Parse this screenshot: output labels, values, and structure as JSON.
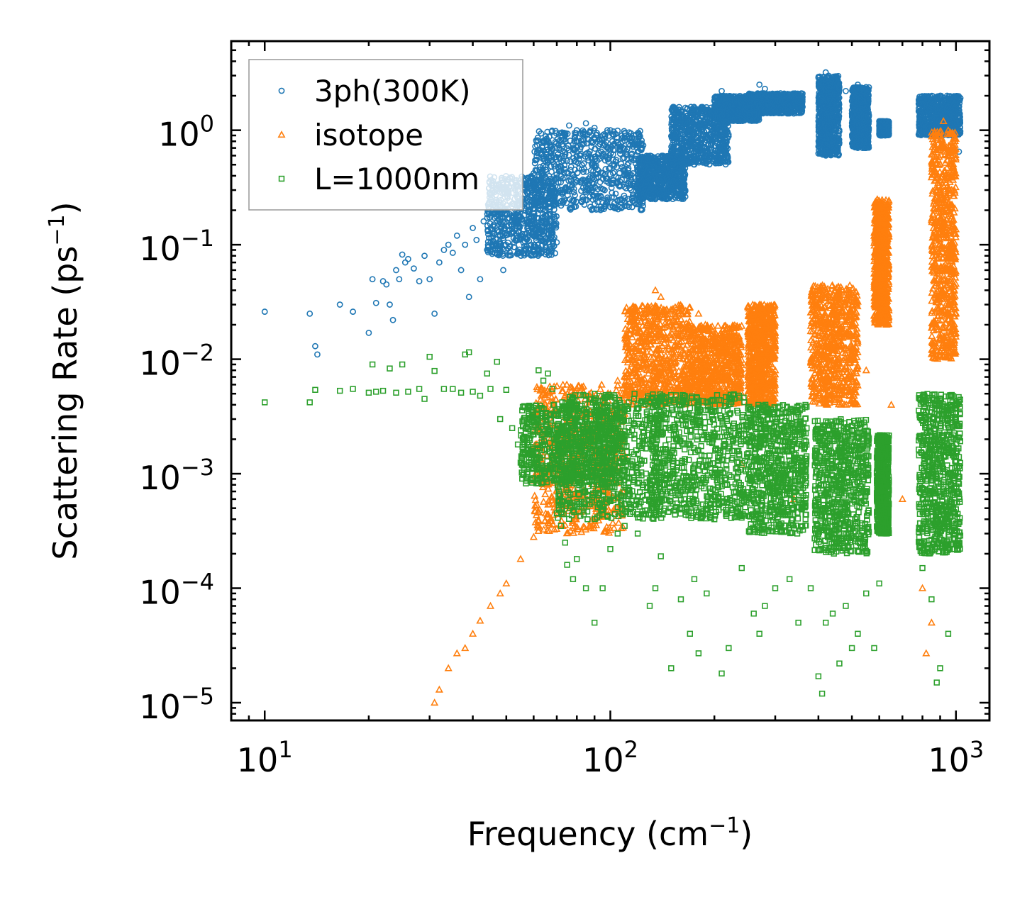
{
  "chart_data": {
    "type": "scatter",
    "title": "",
    "xlabel": "Frequency (cm",
    "xlabel_sup": "−1",
    "xlabel_end": ")",
    "ylabel": "Scattering Rate (ps",
    "ylabel_sup": "−1",
    "ylabel_end": ")",
    "x_scale": "log",
    "y_scale": "log",
    "xlim": [
      8,
      1250
    ],
    "ylim": [
      7e-06,
      6
    ],
    "legend_position": "top-left",
    "x_ticks": [
      {
        "value": 10,
        "base": "10",
        "exp": "1"
      },
      {
        "value": 100,
        "base": "10",
        "exp": "2"
      },
      {
        "value": 1000,
        "base": "10",
        "exp": "3"
      }
    ],
    "y_ticks": [
      {
        "value": 1,
        "base": "10",
        "exp": "0"
      },
      {
        "value": 0.1,
        "base": "10",
        "exp": "−1"
      },
      {
        "value": 0.01,
        "base": "10",
        "exp": "−2"
      },
      {
        "value": 0.001,
        "base": "10",
        "exp": "−3"
      },
      {
        "value": 0.0001,
        "base": "10",
        "exp": "−4"
      },
      {
        "value": 1e-05,
        "base": "10",
        "exp": "−5"
      }
    ],
    "series": [
      {
        "name": "3ph(300K)",
        "marker": "circle",
        "color": "#1f77b4",
        "points": [
          [
            10,
            0.026
          ],
          [
            13.5,
            0.025
          ],
          [
            14,
            0.013
          ],
          [
            14.2,
            0.011
          ],
          [
            16.5,
            0.03
          ],
          [
            18,
            0.026
          ],
          [
            20,
            0.017
          ],
          [
            20.5,
            0.05
          ],
          [
            21,
            0.031
          ],
          [
            22,
            0.048
          ],
          [
            22.5,
            0.045
          ],
          [
            23,
            0.03
          ],
          [
            23.5,
            0.022
          ],
          [
            24,
            0.06
          ],
          [
            24.5,
            0.05
          ],
          [
            25,
            0.082
          ],
          [
            25.5,
            0.07
          ],
          [
            26,
            0.075
          ],
          [
            27,
            0.062
          ],
          [
            28,
            0.048
          ],
          [
            29,
            0.08
          ],
          [
            30,
            0.05
          ],
          [
            31,
            0.025
          ],
          [
            32,
            0.07
          ],
          [
            33,
            0.09
          ],
          [
            34,
            0.1
          ],
          [
            35,
            0.085
          ],
          [
            36,
            0.12
          ],
          [
            37,
            0.06
          ],
          [
            38,
            0.1
          ],
          [
            39,
            0.035
          ],
          [
            40,
            0.14
          ],
          [
            41,
            0.11
          ],
          [
            42,
            0.05
          ],
          [
            43,
            0.16
          ],
          [
            44,
            0.09
          ],
          [
            45,
            0.18
          ],
          [
            46,
            0.15
          ],
          [
            47,
            0.21
          ],
          [
            48,
            0.12
          ],
          [
            49,
            0.06
          ],
          [
            50,
            0.22
          ],
          [
            52,
            0.18
          ],
          [
            54,
            0.3
          ],
          [
            56,
            0.25
          ],
          [
            58,
            0.14
          ],
          [
            60,
            0.33
          ],
          [
            62,
            0.22
          ],
          [
            64,
            0.42
          ],
          [
            66,
            0.35
          ],
          [
            68,
            0.55
          ],
          [
            70,
            0.7
          ],
          [
            72,
            0.48
          ],
          [
            74,
            0.9
          ],
          [
            76,
            1.1
          ],
          [
            78,
            0.75
          ],
          [
            80,
            1.0
          ],
          [
            82,
            0.6
          ],
          [
            85,
            1.15
          ],
          [
            88,
            0.8
          ],
          [
            90,
            1.05
          ],
          [
            92,
            0.45
          ],
          [
            95,
            0.9
          ],
          [
            98,
            0.7
          ],
          [
            100,
            1.0
          ],
          [
            104,
            0.55
          ],
          [
            108,
            0.85
          ],
          [
            112,
            0.4
          ],
          [
            116,
            0.75
          ],
          [
            120,
            0.35
          ],
          [
            125,
            0.55
          ],
          [
            130,
            0.3
          ],
          [
            135,
            0.25
          ],
          [
            140,
            0.45
          ],
          [
            145,
            0.5
          ],
          [
            150,
            0.65
          ],
          [
            160,
            0.8
          ],
          [
            170,
            1.2
          ],
          [
            180,
            1.5
          ],
          [
            190,
            1.3
          ],
          [
            200,
            1.8
          ],
          [
            210,
            2.2
          ],
          [
            220,
            1.6
          ],
          [
            230,
            1.4
          ],
          [
            240,
            1.7
          ],
          [
            250,
            1.5
          ],
          [
            260,
            2.0
          ],
          [
            270,
            2.5
          ],
          [
            280,
            2.3
          ],
          [
            290,
            1.9
          ],
          [
            300,
            2.0
          ],
          [
            320,
            1.8
          ],
          [
            340,
            1.7
          ],
          [
            360,
            1.6
          ],
          [
            400,
            1.2
          ],
          [
            410,
            2.8
          ],
          [
            420,
            3.2
          ],
          [
            430,
            2.0
          ],
          [
            440,
            1.5
          ],
          [
            450,
            1.0
          ],
          [
            480,
            2.2
          ],
          [
            500,
            1.4
          ],
          [
            520,
            2.5
          ],
          [
            540,
            1.8
          ],
          [
            600,
            1.2
          ],
          [
            620,
            1.05
          ],
          [
            800,
            1.8
          ],
          [
            850,
            1.4
          ],
          [
            900,
            2.0
          ],
          [
            950,
            1.6
          ],
          [
            1000,
            1.0
          ],
          [
            1020,
            0.65
          ]
        ],
        "bands": [
          {
            "x_from": 44,
            "x_to": 70,
            "y_from": 0.08,
            "y_to": 0.4
          },
          {
            "x_from": 60,
            "x_to": 125,
            "y_from": 0.2,
            "y_to": 1.0
          },
          {
            "x_from": 120,
            "x_to": 165,
            "y_from": 0.25,
            "y_to": 0.6
          },
          {
            "x_from": 150,
            "x_to": 220,
            "y_from": 0.5,
            "y_to": 1.6
          },
          {
            "x_from": 200,
            "x_to": 270,
            "y_from": 1.2,
            "y_to": 2.0
          },
          {
            "x_from": 250,
            "x_to": 360,
            "y_from": 1.4,
            "y_to": 2.1
          },
          {
            "x_from": 400,
            "x_to": 460,
            "y_from": 0.6,
            "y_to": 3.0
          },
          {
            "x_from": 500,
            "x_to": 560,
            "y_from": 0.7,
            "y_to": 2.4
          },
          {
            "x_from": 600,
            "x_to": 640,
            "y_from": 0.9,
            "y_to": 1.2
          },
          {
            "x_from": 780,
            "x_to": 1030,
            "y_from": 0.9,
            "y_to": 2.0
          }
        ]
      },
      {
        "name": "isotope",
        "marker": "triangle",
        "color": "#ff7f0e",
        "points": [
          [
            31,
            1e-05
          ],
          [
            32,
            1.3e-05
          ],
          [
            34,
            2e-05
          ],
          [
            36,
            2.7e-05
          ],
          [
            38,
            3e-05
          ],
          [
            40,
            4e-05
          ],
          [
            42,
            5.2e-05
          ],
          [
            45,
            7e-05
          ],
          [
            48,
            9e-05
          ],
          [
            50,
            0.00011
          ],
          [
            55,
            0.00018
          ],
          [
            60,
            0.00028
          ],
          [
            65,
            0.00045
          ],
          [
            70,
            0.0007
          ],
          [
            75,
            0.001
          ],
          [
            80,
            0.0014
          ],
          [
            90,
            0.0022
          ],
          [
            100,
            0.0035
          ],
          [
            105,
            0.0065
          ],
          [
            110,
            0.007
          ],
          [
            120,
            0.009
          ],
          [
            130,
            0.025
          ],
          [
            135,
            0.04
          ],
          [
            140,
            0.035
          ],
          [
            150,
            0.02
          ],
          [
            160,
            0.012
          ],
          [
            180,
            0.025
          ],
          [
            200,
            0.012
          ],
          [
            220,
            0.009
          ],
          [
            240,
            0.0012
          ],
          [
            260,
            0.006
          ],
          [
            270,
            0.03
          ],
          [
            280,
            0.025
          ],
          [
            300,
            0.008
          ],
          [
            340,
            0.0006
          ],
          [
            400,
            0.005
          ],
          [
            420,
            0.035
          ],
          [
            460,
            0.04
          ],
          [
            500,
            0.03
          ],
          [
            550,
            0.008
          ],
          [
            600,
            0.2
          ],
          [
            620,
            0.12
          ],
          [
            650,
            0.004
          ],
          [
            700,
            0.0006
          ],
          [
            800,
            0.0001
          ],
          [
            820,
            2.7e-05
          ],
          [
            850,
            5e-05
          ],
          [
            880,
            0.05
          ],
          [
            900,
            0.3
          ],
          [
            920,
            1.2
          ],
          [
            950,
            0.6
          ],
          [
            980,
            0.15
          ],
          [
            1000,
            0.004
          ]
        ],
        "bands": [
          {
            "x_from": 60,
            "x_to": 110,
            "y_from": 0.0003,
            "y_to": 0.006
          },
          {
            "x_from": 110,
            "x_to": 170,
            "y_from": 0.004,
            "y_to": 0.03
          },
          {
            "x_from": 170,
            "x_to": 240,
            "y_from": 0.004,
            "y_to": 0.02
          },
          {
            "x_from": 250,
            "x_to": 300,
            "y_from": 0.004,
            "y_to": 0.03
          },
          {
            "x_from": 380,
            "x_to": 520,
            "y_from": 0.004,
            "y_to": 0.045
          },
          {
            "x_from": 580,
            "x_to": 640,
            "y_from": 0.02,
            "y_to": 0.25
          },
          {
            "x_from": 850,
            "x_to": 1000,
            "y_from": 0.01,
            "y_to": 1.0
          }
        ]
      },
      {
        "name": "L=1000nm",
        "marker": "square",
        "color": "#2ca02c",
        "points": [
          [
            10,
            0.0042
          ],
          [
            13.5,
            0.0042
          ],
          [
            14,
            0.0054
          ],
          [
            16.5,
            0.0053
          ],
          [
            18,
            0.0055
          ],
          [
            20,
            0.0051
          ],
          [
            20.5,
            0.009
          ],
          [
            21,
            0.0052
          ],
          [
            22,
            0.0053
          ],
          [
            23,
            0.0083
          ],
          [
            24,
            0.0051
          ],
          [
            25,
            0.009
          ],
          [
            26,
            0.0052
          ],
          [
            28,
            0.0055
          ],
          [
            29,
            0.0045
          ],
          [
            30,
            0.0105
          ],
          [
            31,
            0.0079
          ],
          [
            33,
            0.0055
          ],
          [
            35,
            0.0055
          ],
          [
            37,
            0.0051
          ],
          [
            38,
            0.011
          ],
          [
            39,
            0.0115
          ],
          [
            40,
            0.0052
          ],
          [
            42,
            0.0048
          ],
          [
            44,
            0.0075
          ],
          [
            45,
            0.0055
          ],
          [
            47,
            0.0095
          ],
          [
            48,
            0.003
          ],
          [
            50,
            0.0054
          ],
          [
            52,
            0.0025
          ],
          [
            54,
            0.0018
          ],
          [
            55,
            0.00125
          ],
          [
            56,
            0.0015
          ],
          [
            58,
            0.0016
          ],
          [
            60,
            0.0022
          ],
          [
            62,
            0.008
          ],
          [
            64,
            0.0065
          ],
          [
            66,
            0.0075
          ],
          [
            68,
            0.0055
          ],
          [
            70,
            0.00045
          ],
          [
            72,
            0.00035
          ],
          [
            74,
            0.00025
          ],
          [
            75,
            0.00016
          ],
          [
            78,
            0.00012
          ],
          [
            80,
            0.00018
          ],
          [
            85,
            0.0001
          ],
          [
            90,
            5e-05
          ],
          [
            95,
            0.0001
          ],
          [
            100,
            0.00022
          ],
          [
            105,
            0.0003
          ],
          [
            110,
            0.00035
          ],
          [
            120,
            0.0003
          ],
          [
            130,
            7e-05
          ],
          [
            135,
            0.0001
          ],
          [
            140,
            0.00019
          ],
          [
            150,
            2e-05
          ],
          [
            160,
            8e-05
          ],
          [
            170,
            4e-05
          ],
          [
            175,
            0.00012
          ],
          [
            180,
            2.7e-05
          ],
          [
            190,
            9e-05
          ],
          [
            200,
            0.0004
          ],
          [
            210,
            1.8e-05
          ],
          [
            220,
            3e-05
          ],
          [
            240,
            0.00015
          ],
          [
            260,
            6e-05
          ],
          [
            270,
            4e-05
          ],
          [
            280,
            7e-05
          ],
          [
            300,
            0.0001
          ],
          [
            330,
            0.00012
          ],
          [
            350,
            5e-05
          ],
          [
            380,
            0.0001
          ],
          [
            400,
            1.7e-05
          ],
          [
            410,
            1.2e-05
          ],
          [
            420,
            5e-05
          ],
          [
            440,
            6e-05
          ],
          [
            460,
            2.2e-05
          ],
          [
            480,
            7e-05
          ],
          [
            500,
            3e-05
          ],
          [
            520,
            4e-05
          ],
          [
            550,
            9e-05
          ],
          [
            580,
            3e-05
          ],
          [
            600,
            0.00011
          ],
          [
            800,
            0.00015
          ],
          [
            850,
            8e-05
          ],
          [
            880,
            1.5e-05
          ],
          [
            900,
            2e-05
          ],
          [
            950,
            4e-05
          ],
          [
            1000,
            0.0015
          ],
          [
            1020,
            0.0014
          ]
        ],
        "bands": [
          {
            "x_from": 55,
            "x_to": 110,
            "y_from": 0.0008,
            "y_to": 0.004
          },
          {
            "x_from": 70,
            "x_to": 140,
            "y_from": 0.0004,
            "y_to": 0.005
          },
          {
            "x_from": 130,
            "x_to": 250,
            "y_from": 0.0004,
            "y_to": 0.005
          },
          {
            "x_from": 250,
            "x_to": 370,
            "y_from": 0.0003,
            "y_to": 0.004
          },
          {
            "x_from": 390,
            "x_to": 560,
            "y_from": 0.0002,
            "y_to": 0.003
          },
          {
            "x_from": 590,
            "x_to": 640,
            "y_from": 0.0003,
            "y_to": 0.0022
          },
          {
            "x_from": 780,
            "x_to": 1030,
            "y_from": 0.0002,
            "y_to": 0.005
          }
        ]
      }
    ]
  }
}
